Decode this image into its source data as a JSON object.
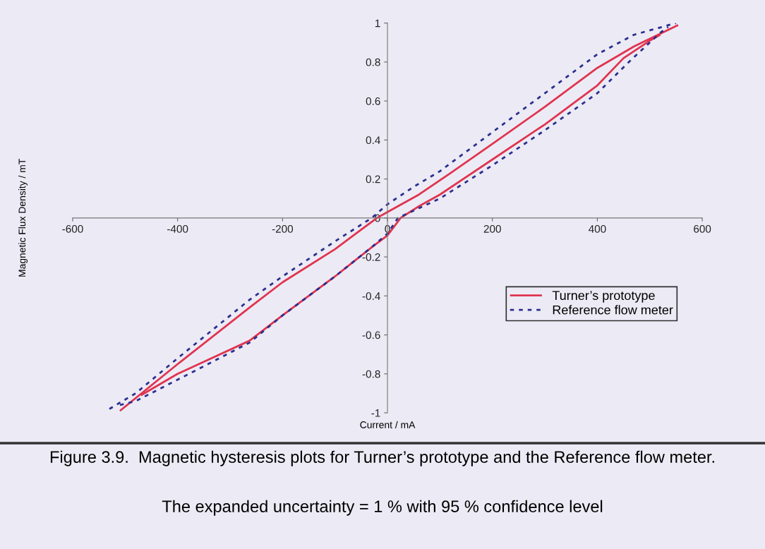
{
  "chart_data": {
    "type": "line",
    "xlabel": "Current / mA",
    "ylabel": "Magnetic Flux Density / mT",
    "xlim": [
      -600,
      600
    ],
    "xticks": [
      -600,
      -400,
      -200,
      0,
      200,
      400,
      600
    ],
    "ylim": [
      -1,
      1
    ],
    "yticks": [
      -1,
      -0.8,
      -0.6,
      -0.4,
      -0.2,
      0,
      0.2,
      0.4,
      0.6,
      0.8,
      1
    ],
    "grid": false,
    "legend": "bottom right",
    "marker": "none",
    "series": [
      {
        "name": "Turner’s prototype",
        "color": "#e0344f",
        "line_style": "solid",
        "x": [
          -510,
          -400,
          -263,
          -200,
          -100,
          -20,
          0,
          20,
          60,
          120,
          200,
          300,
          400,
          470,
          554
        ],
        "values": [
          -0.99,
          -0.75,
          -0.46,
          -0.33,
          -0.16,
          0,
          0.03,
          0.06,
          0.12,
          0.23,
          0.38,
          0.57,
          0.77,
          0.88,
          0.99
        ]
      },
      {
        "color": "#e0344f",
        "line_style": "solid",
        "x": [
          -470,
          -400,
          -263,
          -200,
          -100,
          -30,
          0,
          25,
          60,
          100,
          200,
          300,
          400,
          450,
          500,
          520
        ],
        "values": [
          -0.91,
          -0.8,
          -0.63,
          -0.5,
          -0.3,
          -0.15,
          -0.09,
          0,
          0.06,
          0.12,
          0.3,
          0.48,
          0.68,
          0.82,
          0.91,
          0.94
        ]
      },
      {
        "name": "Reference flow meter",
        "color": "#2b2f8f",
        "line_style": "dashed",
        "x": [
          -530,
          -480,
          -400,
          -263,
          -200,
          -100,
          -30,
          0,
          50,
          100,
          200,
          300,
          400,
          470,
          550
        ],
        "values": [
          -0.98,
          -0.9,
          -0.72,
          -0.42,
          -0.3,
          -0.12,
          0,
          0.07,
          0.16,
          0.24,
          0.44,
          0.64,
          0.84,
          0.94,
          1.0
        ]
      },
      {
        "color": "#2b2f8f",
        "line_style": "dashed",
        "x": [
          -510,
          -480,
          -400,
          -263,
          -200,
          -100,
          -30,
          0,
          20,
          100,
          200,
          300,
          400,
          460,
          520,
          535
        ],
        "values": [
          -0.96,
          -0.94,
          -0.83,
          -0.64,
          -0.5,
          -0.3,
          -0.15,
          -0.08,
          0,
          0.1,
          0.27,
          0.45,
          0.64,
          0.8,
          0.95,
          0.98
        ]
      }
    ],
    "annotations": [
      "Figure 3.9.  Magnetic hysteresis plots for Turner’s prototype and the Reference flow meter.",
      "The expanded uncertainty = 1 % with 95 % confidence level"
    ]
  }
}
